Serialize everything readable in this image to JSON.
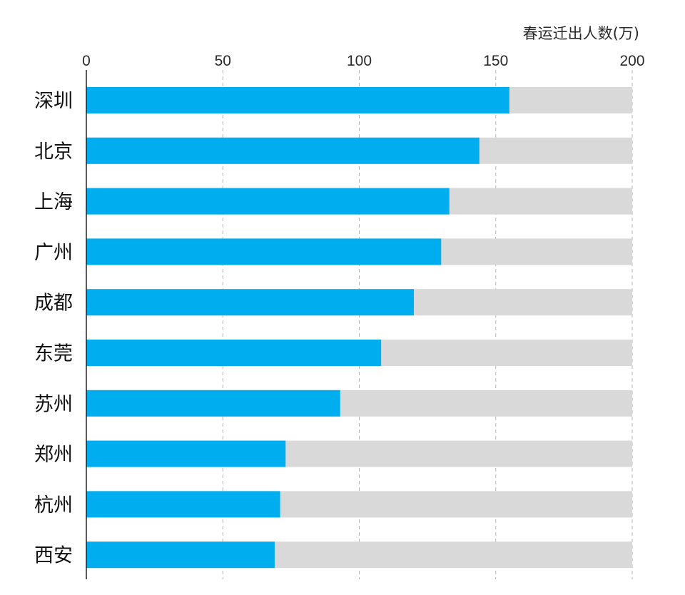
{
  "chart_data": {
    "type": "bar",
    "orientation": "horizontal",
    "xlabel": "春运迁出人数(万)",
    "xlim": [
      0,
      200
    ],
    "xticks": [
      0,
      50,
      100,
      150,
      200
    ],
    "categories": [
      "深圳",
      "北京",
      "上海",
      "广州",
      "成都",
      "东莞",
      "苏州",
      "郑州",
      "杭州",
      "西安"
    ],
    "values": [
      155,
      144,
      133,
      130,
      120,
      108,
      93,
      73,
      71,
      69
    ],
    "background_value": 200,
    "grid": true,
    "legend": "none",
    "colors": {
      "bar": "#00aeef",
      "track": "#d9d9d9",
      "grid": "#b5b5b5",
      "axis": "#222222"
    }
  }
}
